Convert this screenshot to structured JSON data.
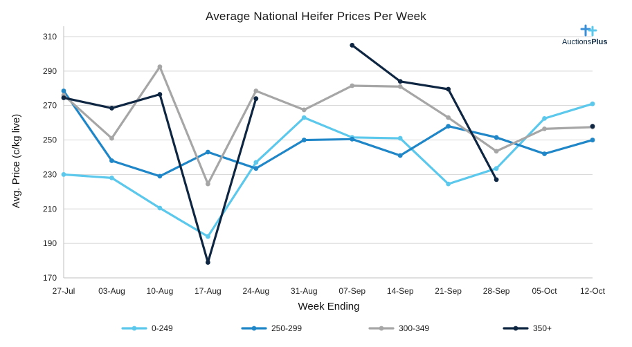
{
  "chart_data": {
    "type": "line",
    "title": "Average National Heifer Prices Per Week",
    "xlabel": "Week Ending",
    "ylabel": "Avg. Price (c/kg live)",
    "categories": [
      "27-Jul",
      "03-Aug",
      "10-Aug",
      "17-Aug",
      "24-Aug",
      "31-Aug",
      "07-Sep",
      "14-Sep",
      "21-Sep",
      "28-Sep",
      "05-Oct",
      "12-Oct"
    ],
    "ylim": [
      170,
      310
    ],
    "yticks": [
      170,
      190,
      210,
      230,
      250,
      270,
      290,
      310
    ],
    "grid": true,
    "legend_position": "bottom",
    "series": [
      {
        "name": "0-249",
        "color": "#5bc8ec",
        "values": [
          230,
          228,
          210.5,
          194,
          237,
          263,
          251.5,
          251,
          224.5,
          233.5,
          262.5,
          271
        ]
      },
      {
        "name": "250-299",
        "color": "#1f86c7",
        "values": [
          278.5,
          238,
          229,
          243,
          233.5,
          250,
          250.5,
          241,
          258,
          251.5,
          242,
          250
        ]
      },
      {
        "name": "300-349",
        "color": "#a6a6a6",
        "values": [
          276,
          251,
          292.5,
          224.5,
          278.5,
          267.5,
          281.5,
          281,
          263,
          243.5,
          256.5,
          257.5
        ]
      },
      {
        "name": "350+",
        "color": "#0e2642",
        "values": [
          274.5,
          268.5,
          276.5,
          179,
          274,
          null,
          305,
          284,
          279.5,
          227,
          null,
          258
        ]
      }
    ]
  },
  "logo": {
    "text_light": "Auctions",
    "text_bold": "Plus"
  }
}
